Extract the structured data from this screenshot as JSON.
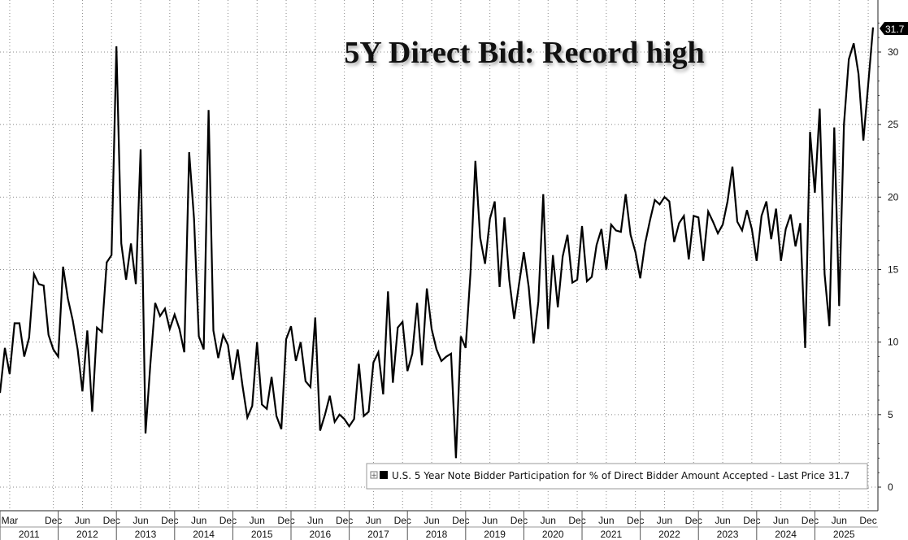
{
  "chart_data": {
    "type": "line",
    "title": "5Y Direct Bid: Record high",
    "xlabel": "",
    "ylabel": "",
    "ylim": [
      -1.5,
      33.5
    ],
    "y_ticks": [
      0,
      5,
      10,
      15,
      20,
      25,
      30
    ],
    "grid": true,
    "legend_position": "bottom-right",
    "x_tick_labels": [
      "Mar",
      "Dec",
      "Jun",
      "Dec",
      "Jun",
      "Dec",
      "Jun",
      "Dec",
      "Jun",
      "Dec",
      "Jun",
      "Dec",
      "Jun",
      "Dec",
      "Jun",
      "Dec",
      "Jun",
      "Dec",
      "Jun",
      "Dec",
      "Jun",
      "Dec",
      "Jun",
      "Dec",
      "Jun",
      "Dec",
      "Jun",
      "Dec",
      "Jun",
      "Dec"
    ],
    "x_tick_dates": [
      "2011-03",
      "2011-12",
      "2012-06",
      "2012-12",
      "2013-06",
      "2013-12",
      "2014-06",
      "2014-12",
      "2015-06",
      "2015-12",
      "2016-06",
      "2016-12",
      "2017-06",
      "2017-12",
      "2018-06",
      "2018-12",
      "2019-06",
      "2019-12",
      "2020-06",
      "2020-12",
      "2021-06",
      "2021-12",
      "2022-06",
      "2022-12",
      "2023-06",
      "2023-12",
      "2024-06",
      "2024-12",
      "2025-06",
      "2025-12"
    ],
    "year_labels": [
      "2011",
      "2012",
      "2013",
      "2014",
      "2015",
      "2016",
      "2017",
      "2018",
      "2019",
      "2020",
      "2021",
      "2022",
      "2023",
      "2024",
      "2025"
    ],
    "x_start": "2011-01",
    "x_end": "2026-02",
    "series": [
      {
        "name": "U.S. 5 Year Note Bidder Participation for % of Direct Bidder Amount Accepted - Last Price 31.7",
        "color": "#000000",
        "points": [
          [
            "2011-01",
            6.5
          ],
          [
            "2011-02",
            9.6
          ],
          [
            "2011-03",
            7.8
          ],
          [
            "2011-04",
            11.3
          ],
          [
            "2011-05",
            11.3
          ],
          [
            "2011-06",
            9.0
          ],
          [
            "2011-07",
            10.3
          ],
          [
            "2011-08",
            14.7
          ],
          [
            "2011-09",
            14.0
          ],
          [
            "2011-10",
            13.9
          ],
          [
            "2011-11",
            10.5
          ],
          [
            "2011-12",
            9.5
          ],
          [
            "2012-01",
            9.0
          ],
          [
            "2012-02",
            15.2
          ],
          [
            "2012-03",
            13.0
          ],
          [
            "2012-04",
            11.5
          ],
          [
            "2012-05",
            9.5
          ],
          [
            "2012-06",
            6.6
          ],
          [
            "2012-07",
            10.8
          ],
          [
            "2012-08",
            5.2
          ],
          [
            "2012-09",
            11.0
          ],
          [
            "2012-10",
            10.7
          ],
          [
            "2012-11",
            15.5
          ],
          [
            "2012-12",
            16.0
          ],
          [
            "2013-01",
            30.4
          ],
          [
            "2013-02",
            16.8
          ],
          [
            "2013-03",
            14.3
          ],
          [
            "2013-04",
            16.8
          ],
          [
            "2013-05",
            14.0
          ],
          [
            "2013-06",
            23.3
          ],
          [
            "2013-07",
            3.7
          ],
          [
            "2013-08",
            8.5
          ],
          [
            "2013-09",
            12.7
          ],
          [
            "2013-10",
            11.8
          ],
          [
            "2013-11",
            12.3
          ],
          [
            "2013-12",
            10.9
          ],
          [
            "2014-01",
            11.9
          ],
          [
            "2014-02",
            10.9
          ],
          [
            "2014-03",
            9.3
          ],
          [
            "2014-04",
            23.1
          ],
          [
            "2014-05",
            18.5
          ],
          [
            "2014-06",
            10.4
          ],
          [
            "2014-07",
            9.5
          ],
          [
            "2014-08",
            26.0
          ],
          [
            "2014-09",
            10.8
          ],
          [
            "2014-10",
            8.9
          ],
          [
            "2014-11",
            10.5
          ],
          [
            "2014-12",
            9.8
          ],
          [
            "2015-01",
            7.4
          ],
          [
            "2015-02",
            9.5
          ],
          [
            "2015-03",
            7.0
          ],
          [
            "2015-04",
            4.8
          ],
          [
            "2015-05",
            5.6
          ],
          [
            "2015-06",
            10.0
          ],
          [
            "2015-07",
            5.7
          ],
          [
            "2015-08",
            5.4
          ],
          [
            "2015-09",
            7.6
          ],
          [
            "2015-10",
            4.9
          ],
          [
            "2015-11",
            4.0
          ],
          [
            "2015-12",
            10.2
          ],
          [
            "2016-01",
            11.1
          ],
          [
            "2016-02",
            8.7
          ],
          [
            "2016-03",
            10.0
          ],
          [
            "2016-04",
            7.3
          ],
          [
            "2016-05",
            6.9
          ],
          [
            "2016-06",
            11.7
          ],
          [
            "2016-07",
            3.9
          ],
          [
            "2016-08",
            5.0
          ],
          [
            "2016-09",
            6.3
          ],
          [
            "2016-10",
            4.5
          ],
          [
            "2016-11",
            5.0
          ],
          [
            "2016-12",
            4.7
          ],
          [
            "2017-01",
            4.2
          ],
          [
            "2017-02",
            4.7
          ],
          [
            "2017-03",
            8.5
          ],
          [
            "2017-04",
            4.9
          ],
          [
            "2017-05",
            5.2
          ],
          [
            "2017-06",
            8.6
          ],
          [
            "2017-07",
            9.3
          ],
          [
            "2017-08",
            6.4
          ],
          [
            "2017-09",
            13.5
          ],
          [
            "2017-10",
            7.2
          ],
          [
            "2017-11",
            11.0
          ],
          [
            "2017-12",
            11.4
          ],
          [
            "2018-01",
            8.0
          ],
          [
            "2018-02",
            9.2
          ],
          [
            "2018-03",
            12.7
          ],
          [
            "2018-04",
            8.4
          ],
          [
            "2018-05",
            13.7
          ],
          [
            "2018-06",
            10.9
          ],
          [
            "2018-07",
            9.5
          ],
          [
            "2018-08",
            8.7
          ],
          [
            "2018-09",
            9.0
          ],
          [
            "2018-10",
            9.2
          ],
          [
            "2018-11",
            2.0
          ],
          [
            "2018-12",
            10.4
          ],
          [
            "2019-01",
            9.6
          ],
          [
            "2019-02",
            14.8
          ],
          [
            "2019-03",
            22.5
          ],
          [
            "2019-04",
            17.2
          ],
          [
            "2019-05",
            15.4
          ],
          [
            "2019-06",
            18.5
          ],
          [
            "2019-07",
            19.7
          ],
          [
            "2019-08",
            13.8
          ],
          [
            "2019-09",
            18.6
          ],
          [
            "2019-10",
            14.3
          ],
          [
            "2019-11",
            11.6
          ],
          [
            "2019-12",
            14.0
          ],
          [
            "2020-01",
            16.2
          ],
          [
            "2020-02",
            13.8
          ],
          [
            "2020-03",
            9.9
          ],
          [
            "2020-04",
            12.8
          ],
          [
            "2020-05",
            20.2
          ],
          [
            "2020-06",
            10.9
          ],
          [
            "2020-07",
            16.0
          ],
          [
            "2020-08",
            12.4
          ],
          [
            "2020-09",
            15.9
          ],
          [
            "2020-10",
            17.4
          ],
          [
            "2020-11",
            14.1
          ],
          [
            "2020-12",
            14.3
          ],
          [
            "2021-01",
            18.0
          ],
          [
            "2021-02",
            14.2
          ],
          [
            "2021-03",
            14.5
          ],
          [
            "2021-04",
            16.7
          ],
          [
            "2021-05",
            17.8
          ],
          [
            "2021-06",
            15.0
          ],
          [
            "2021-07",
            18.1
          ],
          [
            "2021-08",
            17.7
          ],
          [
            "2021-09",
            17.6
          ],
          [
            "2021-10",
            20.2
          ],
          [
            "2021-11",
            17.4
          ],
          [
            "2021-12",
            16.2
          ],
          [
            "2022-01",
            14.4
          ],
          [
            "2022-02",
            16.8
          ],
          [
            "2022-03",
            18.4
          ],
          [
            "2022-04",
            19.8
          ],
          [
            "2022-05",
            19.5
          ],
          [
            "2022-06",
            20.0
          ],
          [
            "2022-07",
            19.7
          ],
          [
            "2022-08",
            16.9
          ],
          [
            "2022-09",
            18.2
          ],
          [
            "2022-10",
            18.7
          ],
          [
            "2022-11",
            15.7
          ],
          [
            "2022-12",
            18.7
          ],
          [
            "2023-01",
            18.6
          ],
          [
            "2023-02",
            15.6
          ],
          [
            "2023-03",
            19.0
          ],
          [
            "2023-04",
            18.3
          ],
          [
            "2023-05",
            17.5
          ],
          [
            "2023-06",
            18.1
          ],
          [
            "2023-07",
            19.7
          ],
          [
            "2023-08",
            22.1
          ],
          [
            "2023-09",
            18.3
          ],
          [
            "2023-10",
            17.7
          ],
          [
            "2023-11",
            19.1
          ],
          [
            "2023-12",
            17.8
          ],
          [
            "2024-01",
            15.6
          ],
          [
            "2024-02",
            18.7
          ],
          [
            "2024-03",
            19.7
          ],
          [
            "2024-04",
            17.1
          ],
          [
            "2024-05",
            19.2
          ],
          [
            "2024-06",
            15.6
          ],
          [
            "2024-07",
            17.8
          ],
          [
            "2024-08",
            18.8
          ],
          [
            "2024-09",
            16.6
          ],
          [
            "2024-10",
            18.2
          ],
          [
            "2024-11",
            9.6
          ],
          [
            "2024-12",
            24.5
          ],
          [
            "2025-01",
            20.3
          ],
          [
            "2025-02",
            26.1
          ],
          [
            "2025-03",
            14.7
          ],
          [
            "2025-04",
            11.1
          ],
          [
            "2025-05",
            24.8
          ],
          [
            "2025-06",
            12.5
          ],
          [
            "2025-07",
            25.0
          ],
          [
            "2025-08",
            29.5
          ],
          [
            "2025-09",
            30.6
          ],
          [
            "2025-10",
            28.5
          ],
          [
            "2025-11",
            23.9
          ],
          [
            "2025-12",
            27.8
          ],
          [
            "2026-01",
            31.7
          ]
        ]
      }
    ],
    "last_value_label": "31.7"
  }
}
